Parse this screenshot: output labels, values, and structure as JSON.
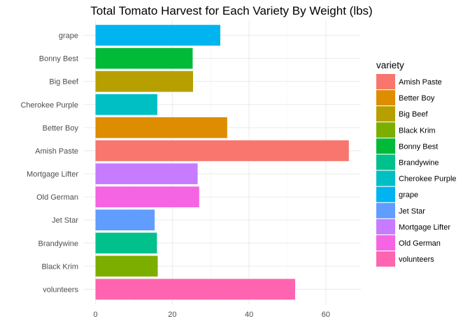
{
  "chart_data": {
    "type": "bar",
    "orientation": "horizontal",
    "title": "Total Tomato Harvest for Each Variety By Weight (lbs)",
    "xlabel": "",
    "ylabel": "",
    "xlim": [
      0,
      68.9
    ],
    "xticks": [
      0,
      20,
      40,
      60
    ],
    "grid": true,
    "legend_position": "right",
    "legend_title": "variety",
    "categories": [
      "grape",
      "Bonny Best",
      "Big Beef",
      "Cherokee Purple",
      "Better Boy",
      "Amish Paste",
      "Mortgage Lifter",
      "Old German",
      "Jet Star",
      "Brandywine",
      "Black Krim",
      "volunteers"
    ],
    "values": [
      32.5,
      25.3,
      25.4,
      16.1,
      34.3,
      66.0,
      26.6,
      27.0,
      15.4,
      16.0,
      16.2,
      52.0
    ],
    "colors": {
      "Amish Paste": "#F8766D",
      "Better Boy": "#DE8C00",
      "Big Beef": "#B79F00",
      "Black Krim": "#7CAE00",
      "Bonny Best": "#00BA38",
      "Brandywine": "#00C08B",
      "Cherokee Purple": "#00BFC4",
      "grape": "#00B4F0",
      "Jet Star": "#619CFF",
      "Mortgage Lifter": "#C77CFF",
      "Old German": "#F564E3",
      "volunteers": "#FF64B0"
    },
    "legend_items": [
      "Amish Paste",
      "Better Boy",
      "Big Beef",
      "Black Krim",
      "Bonny Best",
      "Brandywine",
      "Cherokee Purple",
      "grape",
      "Jet Star",
      "Mortgage Lifter",
      "Old German",
      "volunteers"
    ]
  }
}
